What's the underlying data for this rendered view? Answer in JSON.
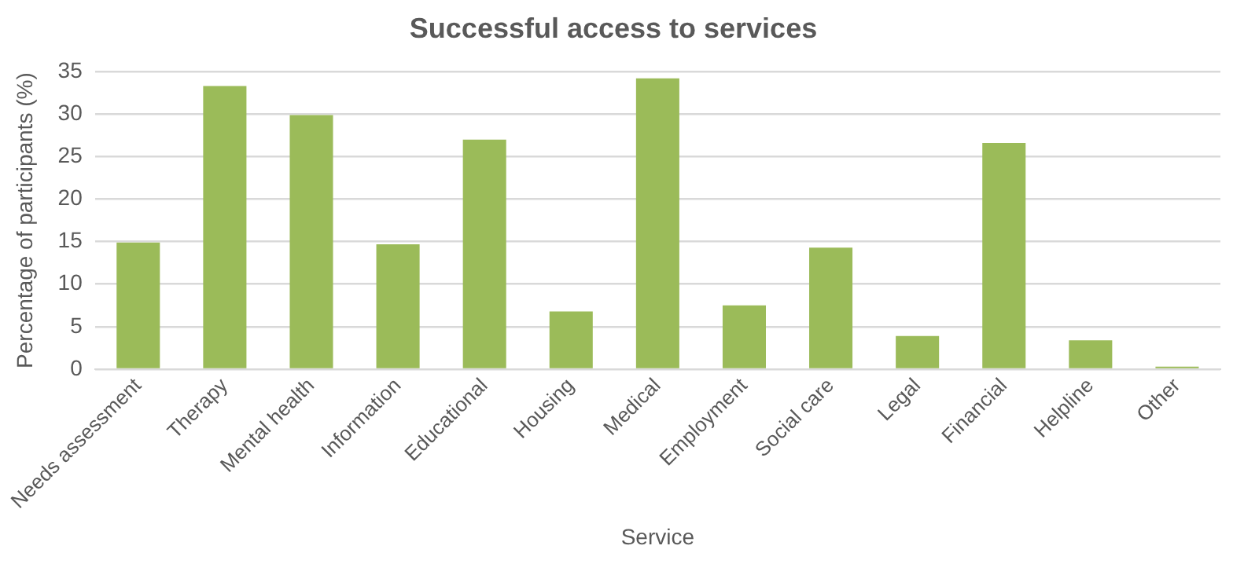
{
  "chart_data": {
    "type": "bar",
    "title": "Successful access to services",
    "xlabel": "Service",
    "ylabel": "Percentage of participants (%)",
    "categories": [
      "Needs assessment",
      "Therapy",
      "Mental health",
      "Information",
      "Educational",
      "Housing",
      "Medical",
      "Employment",
      "Social care",
      "Legal",
      "Financial",
      "Helpline",
      "Other"
    ],
    "values": [
      14.9,
      33.3,
      29.9,
      14.7,
      27.0,
      6.8,
      34.2,
      7.5,
      14.3,
      3.9,
      26.6,
      3.4,
      0.3
    ],
    "color": "#9bbb59",
    "ylim": [
      0,
      35
    ],
    "yticks": [
      0,
      5,
      10,
      15,
      20,
      25,
      30,
      35
    ],
    "grid": "y",
    "legend": false
  }
}
